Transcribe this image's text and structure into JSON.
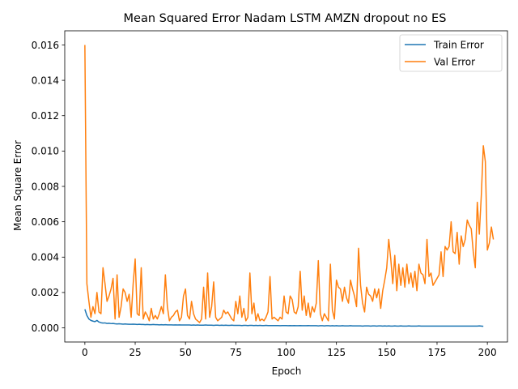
{
  "chart_data": {
    "type": "line",
    "title": "Mean Squared Error  Nadam LSTM AMZN dropout no ES",
    "xlabel": "Epoch",
    "ylabel": "Mean Square Error",
    "xlim": [
      -10,
      210
    ],
    "ylim": [
      -0.0008,
      0.0168
    ],
    "x_ticks": [
      0,
      25,
      50,
      75,
      100,
      125,
      150,
      175,
      200
    ],
    "x_tick_labels": [
      "0",
      "25",
      "50",
      "75",
      "100",
      "125",
      "150",
      "175",
      "200"
    ],
    "y_ticks": [
      0,
      0.002,
      0.004,
      0.006,
      0.008,
      0.01,
      0.012,
      0.014,
      0.016
    ],
    "y_tick_labels": [
      "0.000",
      "0.002",
      "0.004",
      "0.006",
      "0.008",
      "0.010",
      "0.012",
      "0.014",
      "0.016"
    ],
    "grid": false,
    "legend_position": "top-right",
    "series": [
      {
        "name": "Train Error",
        "color": "#1f77b4",
        "values": [
          0.00105,
          0.0007,
          0.0005,
          0.00042,
          0.00038,
          0.00035,
          0.00042,
          0.00033,
          0.00029,
          0.00027,
          0.00028,
          0.00025,
          0.00026,
          0.00024,
          0.00025,
          0.00023,
          0.00022,
          0.00023,
          0.00022,
          0.00021,
          0.00022,
          0.00021,
          0.0002,
          0.0002,
          0.00021,
          0.0002,
          0.00019,
          0.0002,
          0.00019,
          0.00019,
          0.00018,
          0.00019,
          0.00018,
          0.00018,
          0.00019,
          0.00018,
          0.00018,
          0.00017,
          0.00018,
          0.00017,
          0.00018,
          0.00017,
          0.00017,
          0.00017,
          0.00016,
          0.00017,
          0.00016,
          0.00017,
          0.00016,
          0.00016,
          0.00016,
          0.00016,
          0.00016,
          0.00015,
          0.00016,
          0.00015,
          0.00016,
          0.00015,
          0.00015,
          0.00015,
          0.00016,
          0.00015,
          0.00015,
          0.00015,
          0.00014,
          0.00015,
          0.00015,
          0.00014,
          0.00015,
          0.00014,
          0.00015,
          0.00014,
          0.00014,
          0.00015,
          0.00014,
          0.00014,
          0.00014,
          0.00014,
          0.00013,
          0.00014,
          0.00014,
          0.00013,
          0.00014,
          0.00014,
          0.00013,
          0.00014,
          0.00013,
          0.00014,
          0.00013,
          0.00013,
          0.00014,
          0.00013,
          0.00013,
          0.00013,
          0.00013,
          0.00013,
          0.00013,
          0.00012,
          0.00013,
          0.00013,
          0.00013,
          0.00012,
          0.00013,
          0.00012,
          0.00013,
          0.00012,
          0.00012,
          0.00013,
          0.00012,
          0.00012,
          0.00012,
          0.00013,
          0.00012,
          0.00012,
          0.00012,
          0.00012,
          0.00011,
          0.00012,
          0.00012,
          0.00011,
          0.00012,
          0.00012,
          0.00011,
          0.00012,
          0.00011,
          0.00012,
          0.00011,
          0.00011,
          0.00012,
          0.00011,
          0.00011,
          0.00011,
          0.00012,
          0.00011,
          0.00011,
          0.00011,
          0.00011,
          0.00011,
          0.0001,
          0.00011,
          0.00011,
          0.00011,
          0.0001,
          0.00011,
          0.00011,
          0.0001,
          0.00011,
          0.00011,
          0.0001,
          0.00011,
          0.0001,
          0.00011,
          0.0001,
          0.0001,
          0.00011,
          0.0001,
          0.0001,
          0.00011,
          0.0001,
          0.0001,
          0.0001,
          0.00011,
          0.0001,
          0.0001,
          0.0001,
          0.0001,
          0.00011,
          0.0001,
          0.0001,
          0.0001,
          0.0001,
          0.0001,
          0.0001,
          0.0001,
          0.0001,
          0.0001,
          0.0001,
          0.0001,
          0.0001,
          0.0001,
          0.0001,
          0.0001,
          0.0001,
          0.0001,
          0.0001,
          0.0001,
          0.0001,
          0.0001,
          0.0001,
          0.0001,
          0.0001,
          0.0001,
          0.0001,
          0.0001,
          0.0001,
          0.0001,
          0.00011,
          0.0001,
          9e-05
        ]
      },
      {
        "name": "Val Error",
        "color": "#ff7f0e",
        "values": [
          0.016,
          0.0025,
          0.0015,
          0.0006,
          0.0012,
          0.0008,
          0.002,
          0.0009,
          0.0008,
          0.0034,
          0.0025,
          0.0015,
          0.0018,
          0.0022,
          0.0028,
          0.0005,
          0.003,
          0.0006,
          0.0012,
          0.0022,
          0.002,
          0.0015,
          0.0019,
          0.0006,
          0.0025,
          0.0039,
          0.0008,
          0.0007,
          0.0034,
          0.0005,
          0.0009,
          0.0007,
          0.0004,
          0.0011,
          0.0005,
          0.0007,
          0.0005,
          0.0008,
          0.0012,
          0.0008,
          0.003,
          0.0012,
          0.0004,
          0.0006,
          0.0007,
          0.0009,
          0.001,
          0.0004,
          0.0006,
          0.0018,
          0.0022,
          0.0007,
          0.0005,
          0.0015,
          0.0008,
          0.0005,
          0.0004,
          0.0003,
          0.0005,
          0.0023,
          0.0005,
          0.0031,
          0.0006,
          0.0012,
          0.0026,
          0.0006,
          0.0004,
          0.0005,
          0.0006,
          0.001,
          0.0008,
          0.0009,
          0.0007,
          0.0005,
          0.0004,
          0.0015,
          0.0008,
          0.0018,
          0.0006,
          0.0011,
          0.0004,
          0.0006,
          0.0031,
          0.0008,
          0.0014,
          0.0004,
          0.0008,
          0.0004,
          0.0005,
          0.0004,
          0.0006,
          0.0009,
          0.0029,
          0.0005,
          0.0006,
          0.0005,
          0.0004,
          0.0006,
          0.0005,
          0.0018,
          0.0009,
          0.0008,
          0.0018,
          0.0016,
          0.0009,
          0.0008,
          0.0012,
          0.0032,
          0.001,
          0.0018,
          0.0007,
          0.0014,
          0.0006,
          0.0012,
          0.0009,
          0.0014,
          0.0038,
          0.0008,
          0.0004,
          0.0008,
          0.0006,
          0.0004,
          0.0036,
          0.001,
          0.0005,
          0.0027,
          0.0023,
          0.0022,
          0.0015,
          0.0023,
          0.0017,
          0.0014,
          0.0027,
          0.0022,
          0.0018,
          0.0012,
          0.0045,
          0.0024,
          0.0014,
          0.0009,
          0.0023,
          0.0019,
          0.0018,
          0.0015,
          0.0022,
          0.0017,
          0.0022,
          0.0011,
          0.0021,
          0.0027,
          0.0034,
          0.005,
          0.0039,
          0.0025,
          0.0041,
          0.0021,
          0.0036,
          0.0024,
          0.0034,
          0.0023,
          0.0036,
          0.0025,
          0.0031,
          0.0023,
          0.0032,
          0.0021,
          0.0036,
          0.0031,
          0.003,
          0.0025,
          0.005,
          0.0029,
          0.0031,
          0.0024,
          0.0026,
          0.0028,
          0.003,
          0.0043,
          0.0029,
          0.0046,
          0.0044,
          0.0046,
          0.006,
          0.0043,
          0.0042,
          0.0054,
          0.0036,
          0.0052,
          0.0046,
          0.005,
          0.0061,
          0.0058,
          0.0056,
          0.0043,
          0.0034,
          0.0071,
          0.0053,
          0.0075,
          0.0103,
          0.0094,
          0.0044,
          0.0048,
          0.0057,
          0.005
        ]
      }
    ]
  }
}
